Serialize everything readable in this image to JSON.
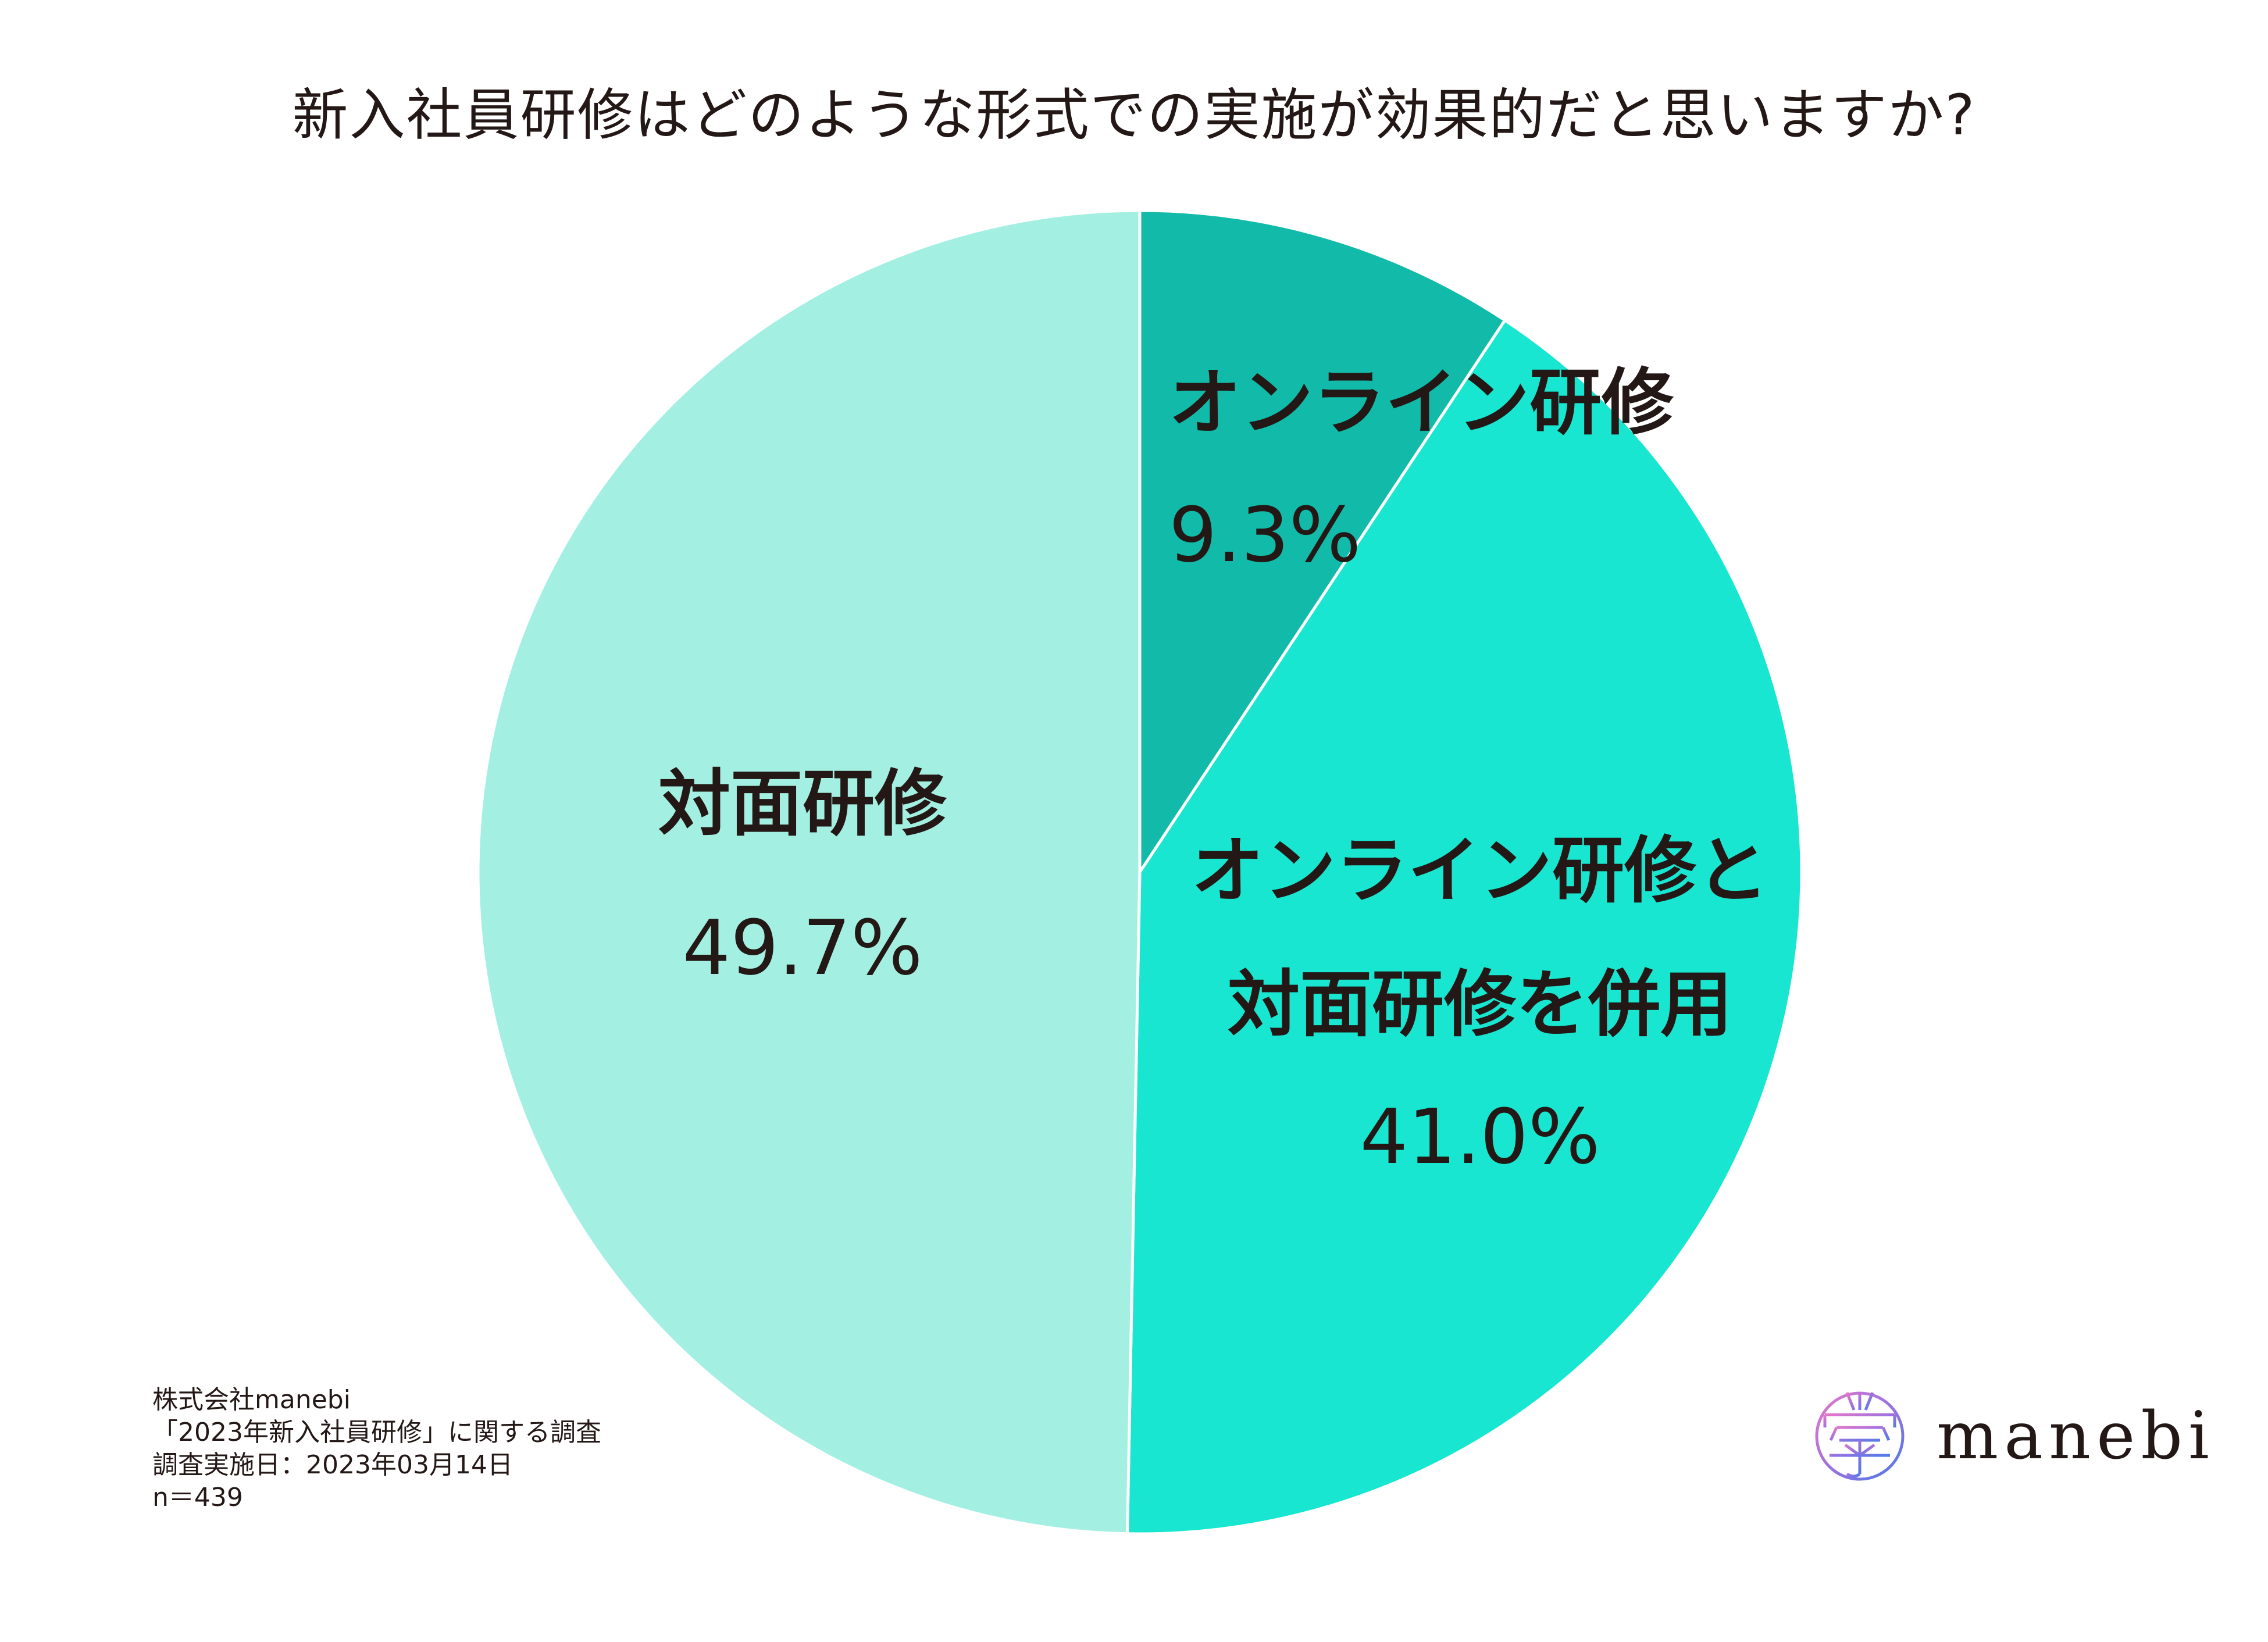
{
  "chart_data": {
    "type": "pie",
    "title": "新入社員研修はどのような形式での実施が効果的だと思いますか?",
    "slices": [
      {
        "label_lines": [
          "オンライン研修"
        ],
        "display_value": "9.3%",
        "value": 9.3,
        "color": "#12BBA9"
      },
      {
        "label_lines": [
          "オンライン研修と",
          "対面研修を併用"
        ],
        "display_value": "41.0%",
        "value": 41.0,
        "color": "#18E6D0"
      },
      {
        "label_lines": [
          "対面研修"
        ],
        "display_value": "49.7%",
        "value": 49.7,
        "color": "#A3F0E2"
      }
    ],
    "start_angle": "12 o'clock",
    "direction": "clockwise"
  },
  "footnote": {
    "lines": [
      "株式会社manebi",
      "「2023年新入社員研修」に関する調査",
      "調査実施日：2023年03月14日",
      "n＝439"
    ]
  },
  "logo": {
    "text": "manebi",
    "mark_icon": "manebi-logo-mark-icon",
    "colors": [
      "#E877C9",
      "#9B72E0",
      "#4E7BE8"
    ]
  }
}
